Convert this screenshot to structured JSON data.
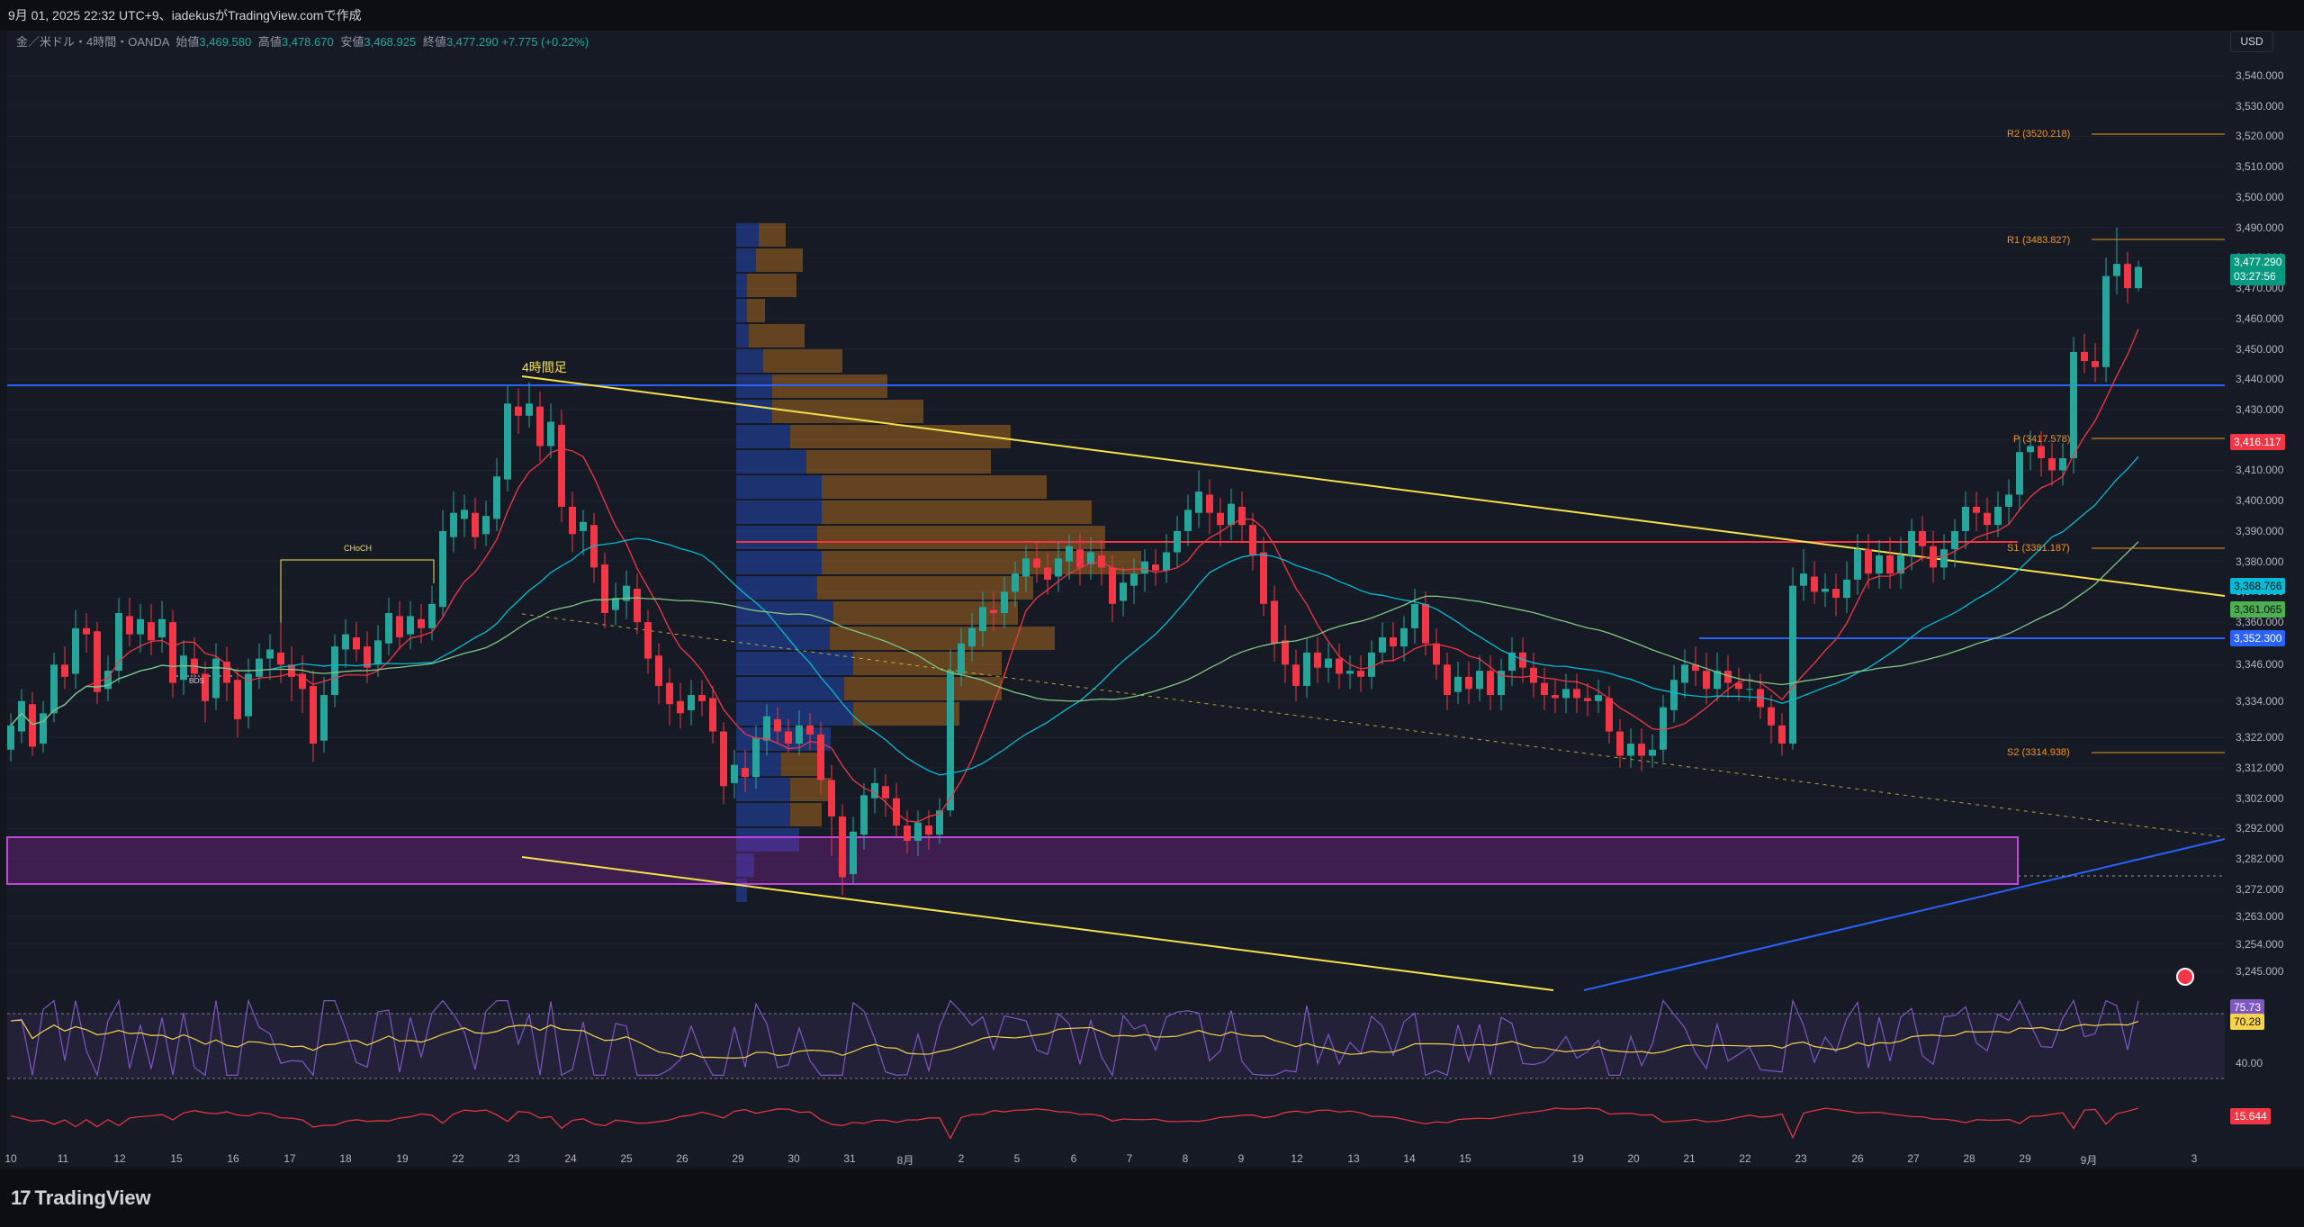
{
  "header": {
    "caption": "9月 01, 2025 22:32 UTC+9、iadekusがTradingView.comで作成"
  },
  "legend": {
    "symbol": "金／米ドル・4時間・OANDA",
    "open_label": "始値",
    "open": "3,469.580",
    "high_label": "高値",
    "high": "3,478.670",
    "low_label": "安値",
    "low": "3,468.925",
    "close_label": "終値",
    "close": "3,477.290",
    "change": "+7.775 (+0.22%)"
  },
  "currency_button": "USD",
  "price_axis": [
    "3,540.000",
    "3,530.000",
    "3,520.000",
    "3,510.000",
    "3,500.000",
    "3,490.000",
    "3,480.000",
    "3,470.000",
    "3,460.000",
    "3,450.000",
    "3,440.000",
    "3,430.000",
    "3,420.000",
    "3,410.000",
    "3,400.000",
    "3,390.000",
    "3,380.000",
    "3,370.000",
    "3,360.000",
    "3,346.000",
    "3,334.000",
    "3,322.000",
    "3,312.000",
    "3,302.000",
    "3,292.000",
    "3,282.000",
    "3,272.000",
    "3,263.000",
    "3,254.000",
    "3,245.000"
  ],
  "price_tags": {
    "last_price": "3,477.290",
    "countdown": "03:27:56",
    "pivot_p": "3,416.117",
    "ema_a": "3,368.766",
    "ema_b": "3,361.065",
    "level_blue": "3,352.300"
  },
  "pivots": {
    "r2": "R2 (3520.218)",
    "r1": "R1 (3483.827)",
    "p": "P (3417.578)",
    "s1": "S1 (3381.187)",
    "s2": "S2 (3314.938)"
  },
  "annotations": {
    "four_hour": "4時間足",
    "choch": "CHoCH",
    "bos": "BOS"
  },
  "rsi": {
    "axis_label": "40.00",
    "value": "75.73",
    "signal": "70.28"
  },
  "lower_indicator": {
    "value": "15.644"
  },
  "time_axis": [
    "10",
    "11",
    "12",
    "15",
    "16",
    "17",
    "18",
    "19",
    "22",
    "23",
    "24",
    "25",
    "26",
    "29",
    "30",
    "31",
    "8月",
    "2",
    "5",
    "6",
    "7",
    "8",
    "9",
    "12",
    "13",
    "14",
    "15",
    "19",
    "20",
    "21",
    "22",
    "23",
    "26",
    "27",
    "28",
    "29",
    "9月",
    "3"
  ],
  "brand": "TradingView",
  "colors": {
    "up": "#26a69a",
    "down": "#f23645",
    "background": "#161a25",
    "trendline": "#f5e14b",
    "blue_line": "#2962ff",
    "pivot_orange": "#f7931a",
    "zone_purple": "#9c27b0"
  }
}
